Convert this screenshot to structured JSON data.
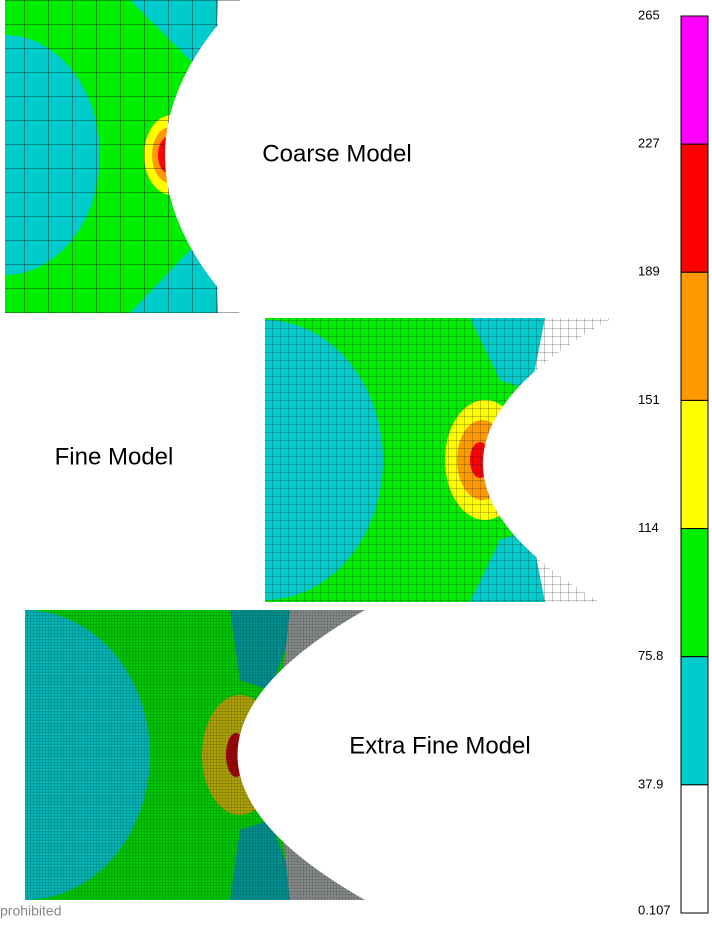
{
  "models": [
    {
      "label": "Coarse Model"
    },
    {
      "label": "Fine Model"
    },
    {
      "label": "Extra Fine Model"
    }
  ],
  "colorbar": {
    "ticks": [
      "265",
      "227",
      "189",
      "151",
      "114",
      "75.8",
      "37.9",
      "0.107"
    ],
    "colors": [
      "#ff00ff",
      "#ff0000",
      "#ff9900",
      "#ffff00",
      "#00ee00",
      "#00cccc",
      "#ffffff"
    ]
  },
  "footer": "prohibited"
}
